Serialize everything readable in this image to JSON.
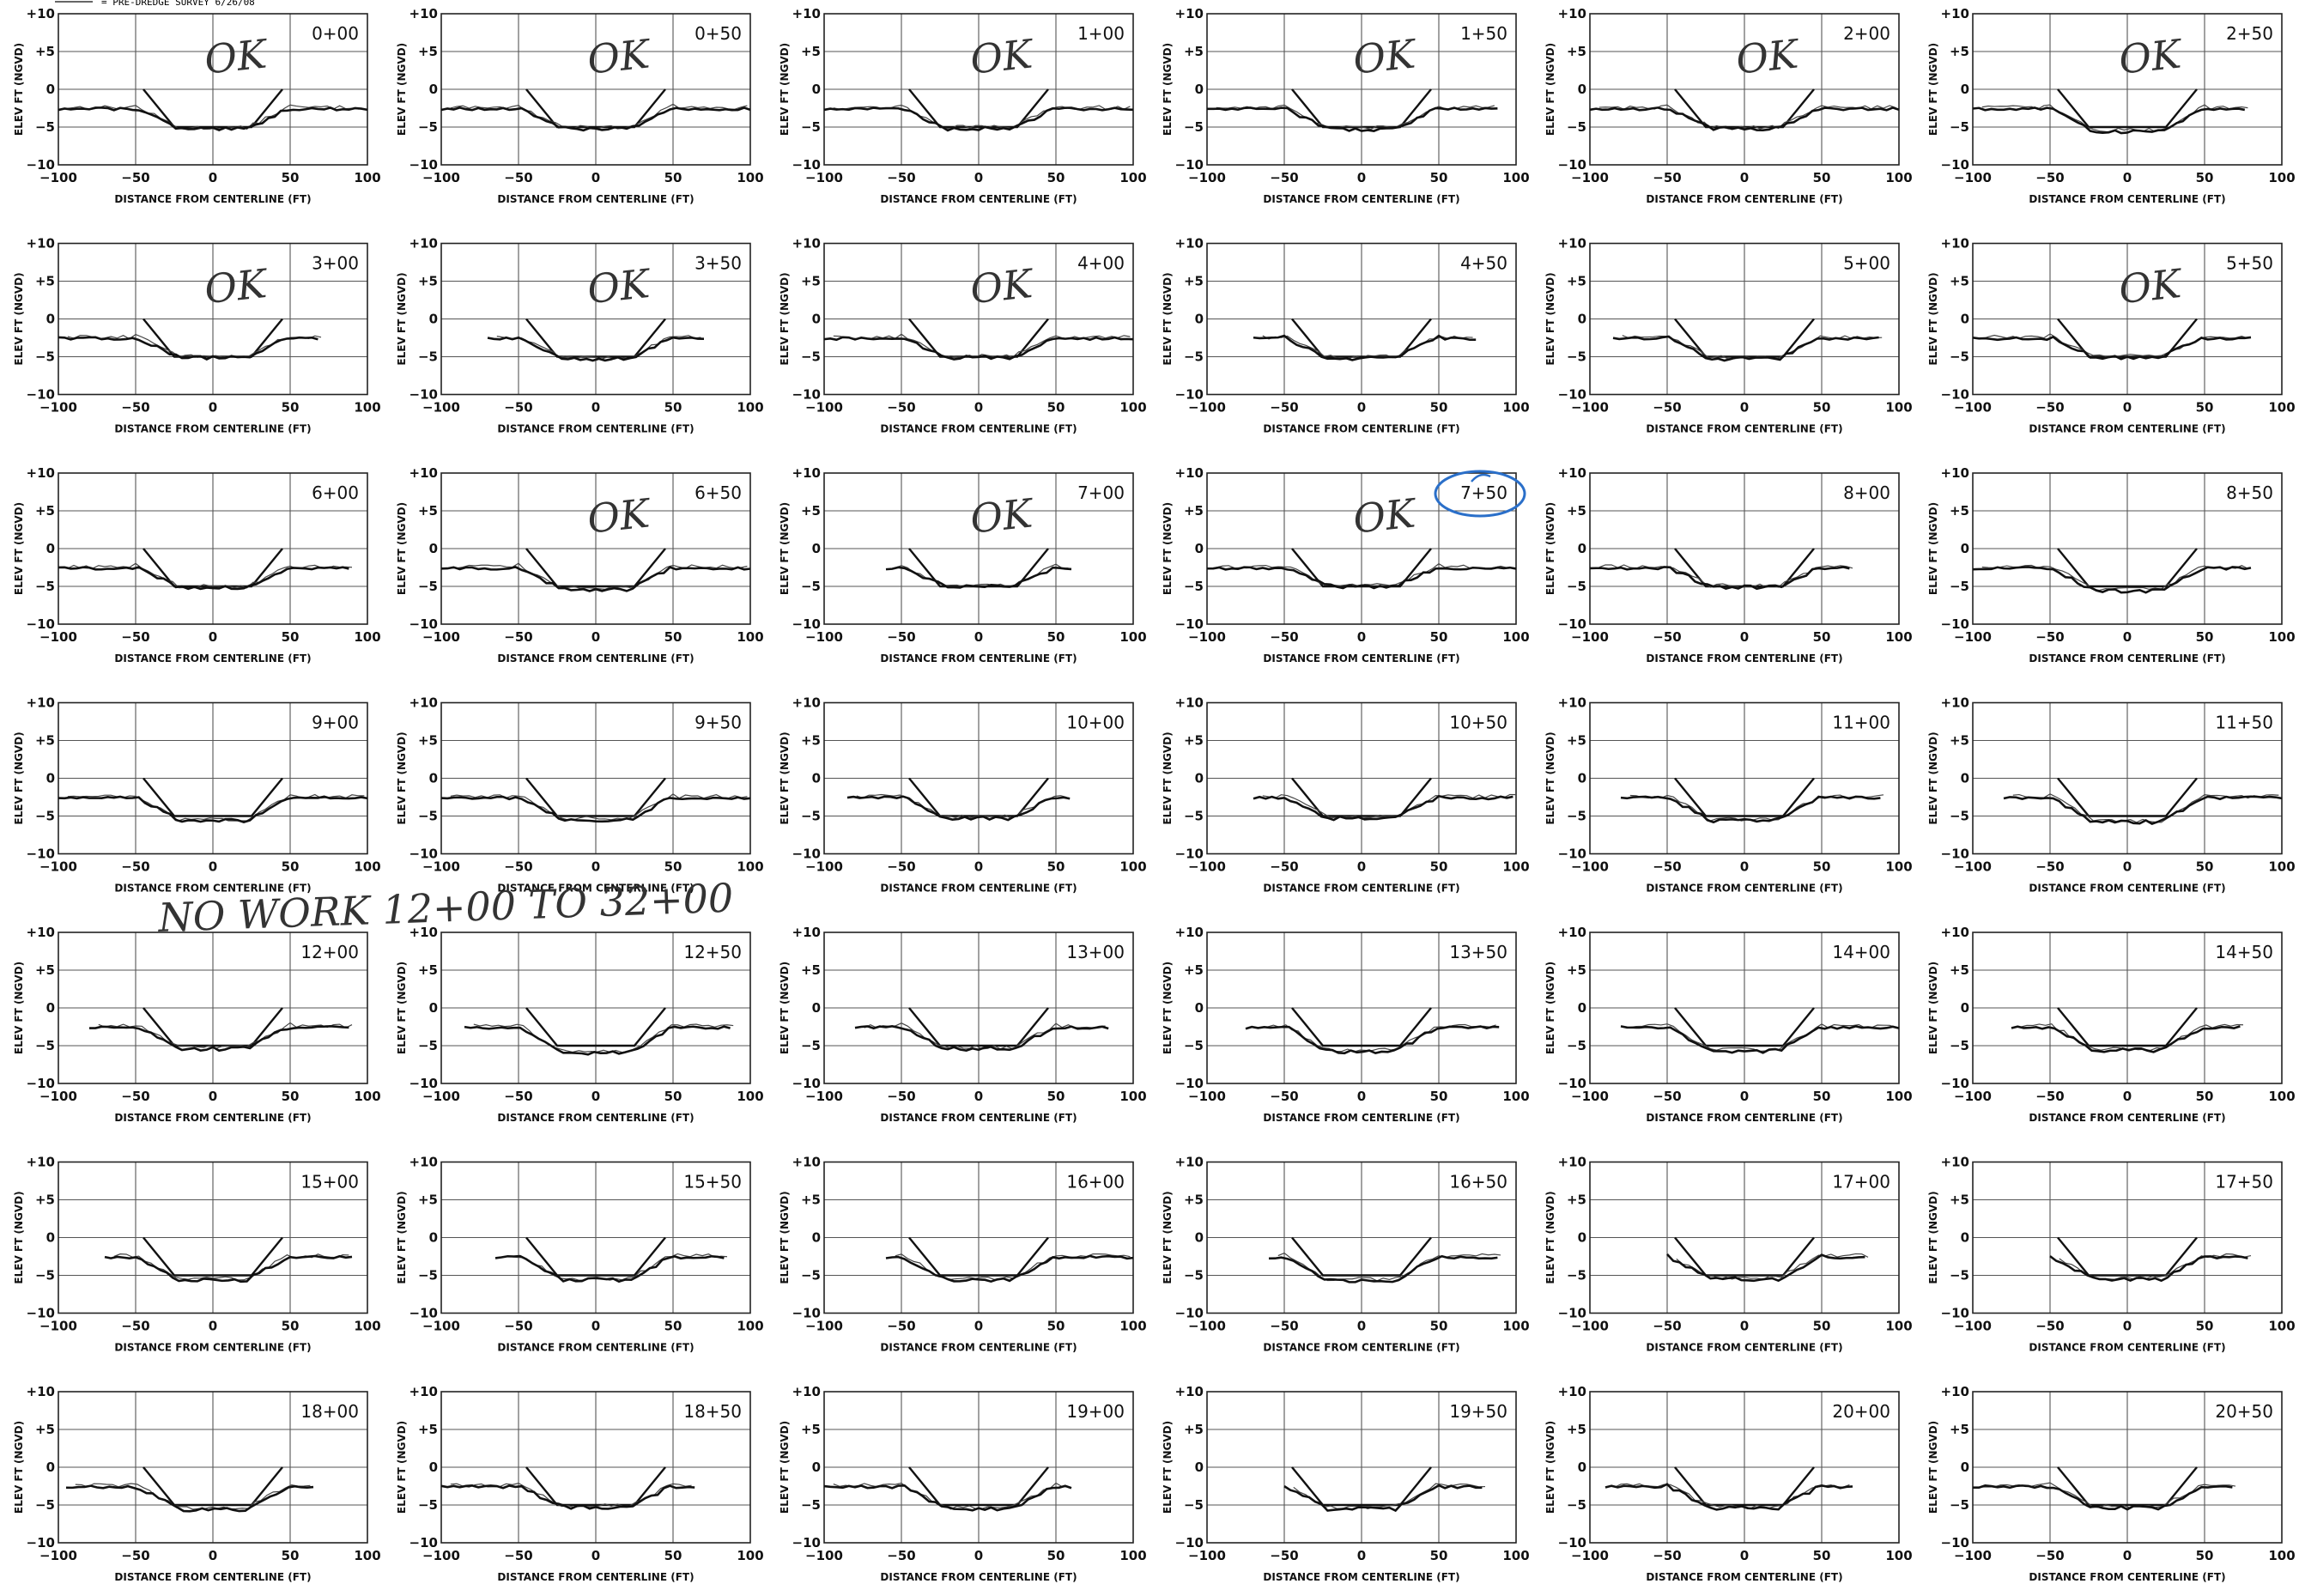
{
  "legend": {
    "text": "= PRE-DREDGE SURVEY 6/26/08"
  },
  "axis": {
    "xlabel": "DISTANCE FROM CENTERLINE (FT)",
    "ylabel": "ELEV FT (NGVD)",
    "x_ticks": [
      "−100",
      "−50",
      "0",
      "50",
      "100"
    ],
    "y_ticks": [
      "+10",
      "+5",
      "0",
      "−5",
      "−10"
    ],
    "x_values": [
      -100,
      -50,
      0,
      50,
      100
    ],
    "y_values": [
      10,
      5,
      0,
      -5,
      -10
    ]
  },
  "chart_data": {
    "type": "line",
    "xlabel": "DISTANCE FROM CENTERLINE (FT)",
    "ylabel": "ELEV FT (NGVD)",
    "xlim": [
      -100,
      100
    ],
    "ylim": [
      -10,
      10
    ],
    "grid": true,
    "template_section": {
      "x": [
        -45,
        -25,
        25,
        45
      ],
      "y": [
        0,
        -5,
        -5,
        0
      ]
    },
    "panels": [
      {
        "station": "0+00",
        "note": "OK",
        "ext": [
          -100,
          100
        ],
        "bottom": -5.3
      },
      {
        "station": "0+50",
        "note": "OK",
        "ext": [
          -100,
          100
        ],
        "bottom": -5.2
      },
      {
        "station": "1+00",
        "note": "OK",
        "ext": [
          -100,
          100
        ],
        "bottom": -5.2
      },
      {
        "station": "1+50",
        "note": "OK",
        "ext": [
          -100,
          88
        ],
        "bottom": -5.3
      },
      {
        "station": "2+00",
        "note": "OK",
        "ext": [
          -100,
          100
        ],
        "bottom": -5.2
      },
      {
        "station": "2+50",
        "note": "OK",
        "ext": [
          -100,
          78
        ],
        "bottom": -5.6
      },
      {
        "station": "3+00",
        "note": "OK",
        "ext": [
          -100,
          70
        ],
        "bottom": -5.1
      },
      {
        "station": "3+50",
        "note": "OK",
        "ext": [
          -70,
          70
        ],
        "bottom": -5.3
      },
      {
        "station": "4+00",
        "note": "OK",
        "ext": [
          -100,
          100
        ],
        "bottom": -5.1
      },
      {
        "station": "4+50",
        "note": "",
        "ext": [
          -70,
          75
        ],
        "bottom": -5.2
      },
      {
        "station": "5+00",
        "note": "",
        "ext": [
          -85,
          90
        ],
        "bottom": -5.3
      },
      {
        "station": "5+50",
        "note": "OK",
        "ext": [
          -100,
          80
        ],
        "bottom": -5.1
      },
      {
        "station": "6+00",
        "note": "",
        "ext": [
          -100,
          90
        ],
        "bottom": -5.2
      },
      {
        "station": "6+50",
        "note": "OK",
        "ext": [
          -100,
          100
        ],
        "bottom": -5.4
      },
      {
        "station": "7+00",
        "note": "OK",
        "ext": [
          -60,
          60
        ],
        "bottom": -5.0
      },
      {
        "station": "7+50",
        "note": "OK",
        "ext": [
          -100,
          100
        ],
        "bottom": -5.0,
        "circled": true
      },
      {
        "station": "8+00",
        "note": "",
        "ext": [
          -100,
          70
        ],
        "bottom": -5.1
      },
      {
        "station": "8+50",
        "note": "",
        "ext": [
          -100,
          80
        ],
        "bottom": -5.6
      },
      {
        "station": "9+00",
        "note": "",
        "ext": [
          -100,
          100
        ],
        "bottom": -5.6
      },
      {
        "station": "9+50",
        "note": "",
        "ext": [
          -100,
          100
        ],
        "bottom": -5.5
      },
      {
        "station": "10+00",
        "note": "",
        "ext": [
          -85,
          60
        ],
        "bottom": -5.3
      },
      {
        "station": "10+50",
        "note": "",
        "ext": [
          -70,
          100
        ],
        "bottom": -5.3
      },
      {
        "station": "11+00",
        "note": "",
        "ext": [
          -80,
          90
        ],
        "bottom": -5.6
      },
      {
        "station": "11+50",
        "note": "",
        "ext": [
          -80,
          100
        ],
        "bottom": -5.8
      },
      {
        "station": "12+00",
        "note": "",
        "ext": [
          -80,
          90
        ],
        "bottom": -5.4
      },
      {
        "station": "12+50",
        "note": "",
        "ext": [
          -85,
          90
        ],
        "bottom": -6.0
      },
      {
        "station": "13+00",
        "note": "",
        "ext": [
          -80,
          85
        ],
        "bottom": -5.4
      },
      {
        "station": "13+50",
        "note": "",
        "ext": [
          -75,
          90
        ],
        "bottom": -5.8
      },
      {
        "station": "14+00",
        "note": "",
        "ext": [
          -80,
          100
        ],
        "bottom": -5.7
      },
      {
        "station": "14+50",
        "note": "",
        "ext": [
          -75,
          75
        ],
        "bottom": -5.6
      },
      {
        "station": "15+00",
        "note": "",
        "ext": [
          -70,
          90
        ],
        "bottom": -5.6
      },
      {
        "station": "15+50",
        "note": "",
        "ext": [
          -65,
          85
        ],
        "bottom": -5.6
      },
      {
        "station": "16+00",
        "note": "",
        "ext": [
          -60,
          100
        ],
        "bottom": -5.6
      },
      {
        "station": "16+50",
        "note": "",
        "ext": [
          -60,
          90
        ],
        "bottom": -5.7
      },
      {
        "station": "17+00",
        "note": "",
        "ext": [
          -50,
          80
        ],
        "bottom": -5.5
      },
      {
        "station": "17+50",
        "note": "",
        "ext": [
          -50,
          80
        ],
        "bottom": -5.5
      },
      {
        "station": "18+00",
        "note": "",
        "ext": [
          -95,
          65
        ],
        "bottom": -5.6
      },
      {
        "station": "18+50",
        "note": "",
        "ext": [
          -100,
          65
        ],
        "bottom": -5.3
      },
      {
        "station": "19+00",
        "note": "",
        "ext": [
          -100,
          60
        ],
        "bottom": -5.5
      },
      {
        "station": "19+50",
        "note": "",
        "ext": [
          -50,
          80
        ],
        "bottom": -5.5
      },
      {
        "station": "20+00",
        "note": "",
        "ext": [
          -90,
          70
        ],
        "bottom": -5.4
      },
      {
        "station": "20+50",
        "note": "",
        "ext": [
          -100,
          70
        ],
        "bottom": -5.4
      }
    ]
  },
  "handwritten_note": {
    "text": "NO   WORK   12+00   TO   32+00"
  }
}
